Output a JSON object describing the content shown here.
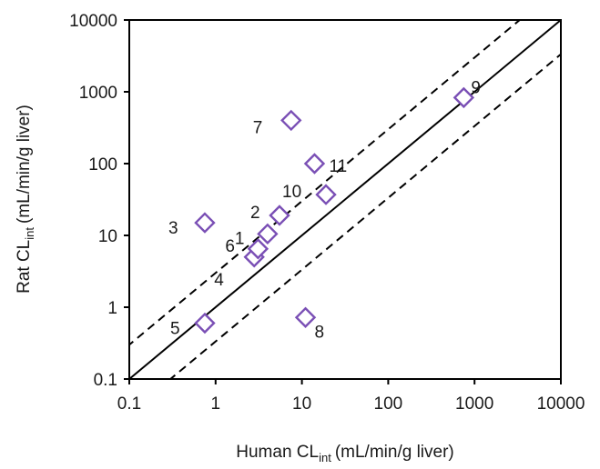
{
  "chart_data": {
    "type": "scatter",
    "xlabel": {
      "main": "Human CL",
      "sub": "int",
      "unit": "(mL/min/g liver)"
    },
    "ylabel": {
      "main": "Rat CL",
      "sub": "int",
      "unit": "(mL/min/g liver)"
    },
    "xscale": "log",
    "yscale": "log",
    "xlim": [
      0.1,
      10000
    ],
    "ylim": [
      0.1,
      10000
    ],
    "xticks": [
      0.1,
      1,
      10,
      100,
      1000,
      10000
    ],
    "yticks": [
      0.1,
      1,
      10,
      100,
      1000,
      10000
    ],
    "xtick_labels": [
      "0.1",
      "1",
      "10",
      "100",
      "1000",
      "10000"
    ],
    "ytick_labels": [
      "0.1",
      "1",
      "10",
      "100",
      "1000",
      "10000"
    ],
    "grid": false,
    "marker": "diamond",
    "marker_color": "#7a4fb5",
    "points": [
      {
        "label": "1",
        "x": 4.0,
        "y": 10.5
      },
      {
        "label": "2",
        "x": 5.5,
        "y": 19
      },
      {
        "label": "3",
        "x": 0.75,
        "y": 15
      },
      {
        "label": "4",
        "x": 2.8,
        "y": 5.0
      },
      {
        "label": "5",
        "x": 0.75,
        "y": 0.6
      },
      {
        "label": "6",
        "x": 3.1,
        "y": 6.5
      },
      {
        "label": "7",
        "x": 7.5,
        "y": 400
      },
      {
        "label": "8",
        "x": 11,
        "y": 0.72
      },
      {
        "label": "9",
        "x": 750,
        "y": 830
      },
      {
        "label": "10",
        "x": 19,
        "y": 37
      },
      {
        "label": "11",
        "x": 14,
        "y": 100
      }
    ],
    "reference_lines": [
      {
        "style": "solid",
        "factor": 1
      },
      {
        "style": "dashed",
        "factor": 3
      },
      {
        "style": "dashed",
        "factor": 0.3333
      }
    ]
  }
}
